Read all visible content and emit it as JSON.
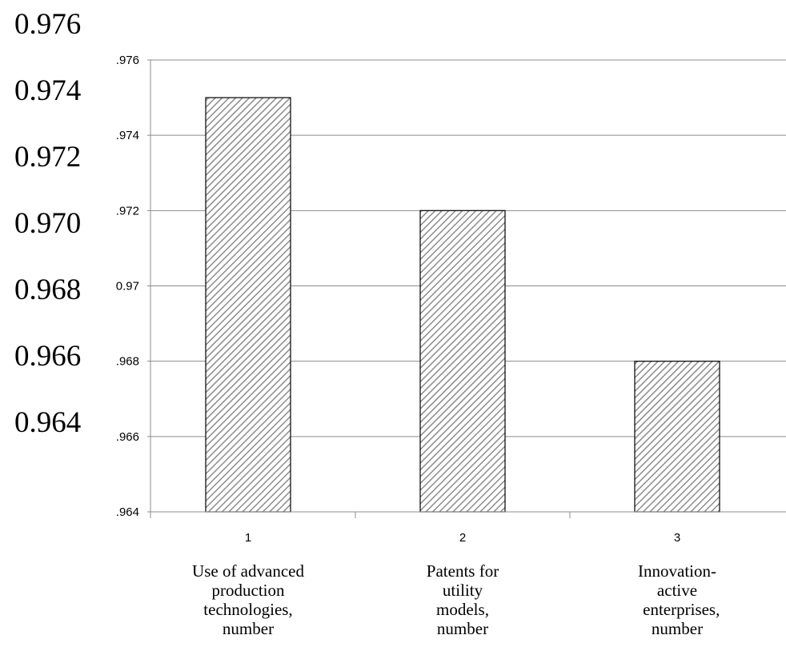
{
  "outer_axis_labels": [
    "0.976",
    "0.974",
    "0.972",
    "0.970",
    "0.968",
    "0.966",
    "0.964"
  ],
  "chart_data": {
    "type": "bar",
    "categories": [
      "1",
      "2",
      "3"
    ],
    "values": [
      0.975,
      0.972,
      0.968
    ],
    "ylim": [
      0.964,
      0.976
    ],
    "yticks": [
      ".964",
      ".966",
      ".968",
      "0.97",
      ".972",
      ".974",
      ".976"
    ],
    "ytick_values": [
      0.964,
      0.966,
      0.968,
      0.97,
      0.972,
      0.974,
      0.976
    ],
    "category_descriptions": [
      [
        "Use of advanced",
        "production",
        "technologies,",
        "number"
      ],
      [
        "Patents for",
        "utility",
        "models,",
        "number"
      ],
      [
        "Innovation-",
        "active",
        "  enterprises,",
        "number"
      ]
    ],
    "title": "",
    "xlabel": "",
    "ylabel": "",
    "grid": true,
    "bar_fill": "hatched",
    "colors": {
      "bar_edge": "#000000",
      "hatch": "#8c8c8c",
      "grid": "#8c8c8c"
    }
  }
}
